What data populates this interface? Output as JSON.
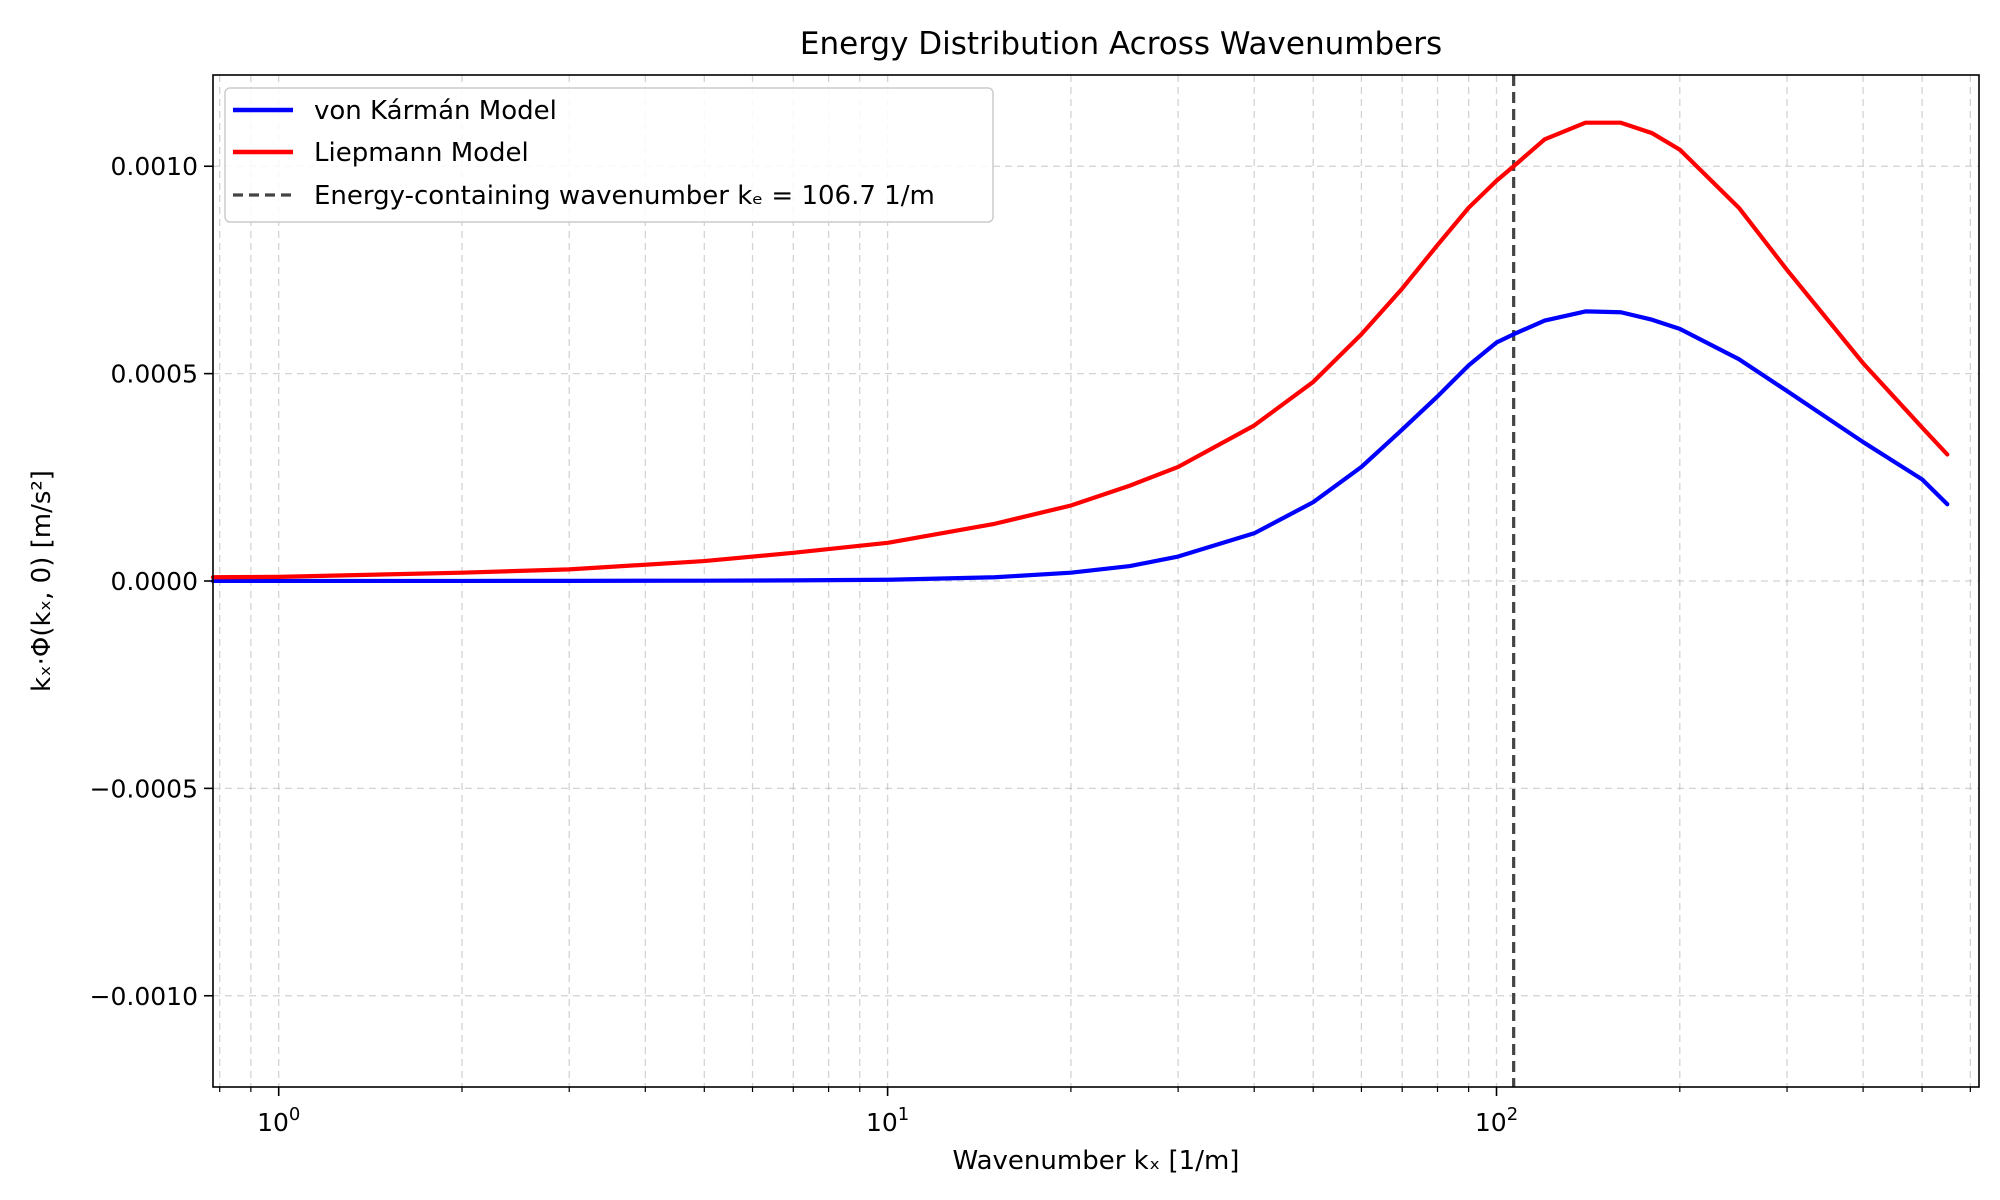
{
  "chart_data": {
    "type": "line",
    "title": "Energy Distribution Across Wavenumbers",
    "xlabel": "Wavenumber kₓ [1/m]",
    "ylabel": "kₓ·Φ(kₓ, 0) [m/s²]",
    "x_scale": "log",
    "xlim": [
      0.78,
      620
    ],
    "ylim": [
      -0.00122,
      0.00122
    ],
    "x_ticks": [
      {
        "value": 1,
        "base": "10",
        "exp": "0"
      },
      {
        "value": 10,
        "base": "10",
        "exp": "1"
      },
      {
        "value": 100,
        "base": "10",
        "exp": "2"
      }
    ],
    "y_ticks": [
      {
        "value": 0.001,
        "label": "0.0010"
      },
      {
        "value": 0.0005,
        "label": "0.0005"
      },
      {
        "value": 0.0,
        "label": "0.0000"
      },
      {
        "value": -0.0005,
        "label": "−0.0005"
      },
      {
        "value": -0.001,
        "label": "−0.0010"
      }
    ],
    "grid": true,
    "legend": {
      "position": "upper-left",
      "entries": [
        {
          "label": "von Kármán Model",
          "color": "#0000ff",
          "style": "solid"
        },
        {
          "label": "Liepmann Model",
          "color": "#ff0000",
          "style": "solid"
        },
        {
          "label": "Energy-containing wavenumber kₑ = 106.7 1/m",
          "color": "#444444",
          "style": "dashed"
        }
      ]
    },
    "series": [
      {
        "name": "von Kármán Model",
        "color": "#0000ff",
        "x": [
          0.78,
          1,
          2,
          3,
          5,
          7,
          10,
          15,
          20,
          25,
          30,
          40,
          50,
          60,
          70,
          80,
          90,
          100,
          106.7,
          120,
          140,
          160,
          180,
          200,
          250,
          300,
          400,
          500,
          550
        ],
        "y": [
          1e-07,
          1e-07,
          2e-07,
          3e-07,
          8e-07,
          1.5e-06,
          3e-06,
          9e-06,
          2e-05,
          3.6e-05,
          5.9e-05,
          0.000115,
          0.00019,
          0.000275,
          0.000365,
          0.000445,
          0.00052,
          0.000575,
          0.000595,
          0.000628,
          0.00065,
          0.000648,
          0.00063,
          0.000608,
          0.000535,
          0.000458,
          0.000335,
          0.000245,
          0.000185
        ]
      },
      {
        "name": "Liepmann Model",
        "color": "#ff0000",
        "x": [
          0.78,
          1,
          2,
          3,
          5,
          7,
          10,
          15,
          20,
          25,
          30,
          40,
          50,
          60,
          70,
          80,
          90,
          100,
          106.7,
          120,
          140,
          160,
          180,
          200,
          250,
          300,
          400,
          500,
          550
        ],
        "y": [
          9e-06,
          1e-05,
          2e-05,
          2.8e-05,
          4.8e-05,
          6.8e-05,
          9.2e-05,
          0.000138,
          0.000182,
          0.00023,
          0.000275,
          0.000375,
          0.00048,
          0.000595,
          0.000705,
          0.00081,
          0.0009,
          0.000965,
          0.001,
          0.001065,
          0.001105,
          0.001105,
          0.00108,
          0.00104,
          0.0009,
          0.00075,
          0.000525,
          0.00037,
          0.000305
        ]
      }
    ],
    "vlines": [
      {
        "x": 106.7,
        "color": "#444444",
        "style": "dashed"
      }
    ]
  }
}
